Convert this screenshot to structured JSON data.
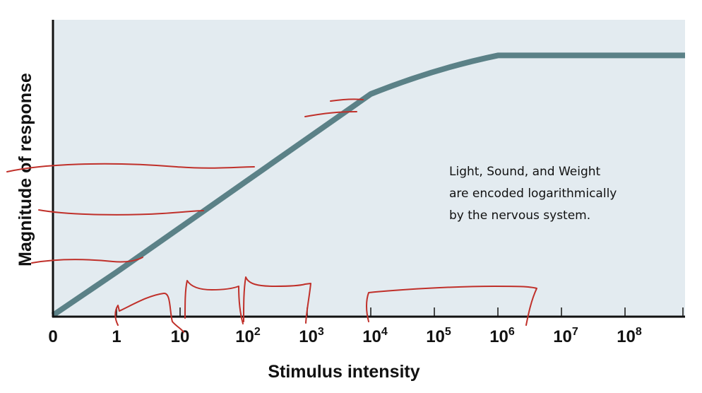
{
  "chart_data": {
    "type": "line",
    "xlabel": "Stimulus intensity",
    "ylabel": "Magnitude of response",
    "x_scale": "logarithmic (0, then decades)",
    "x_ticks": [
      {
        "base": "0",
        "exp": ""
      },
      {
        "base": "1",
        "exp": ""
      },
      {
        "base": "10",
        "exp": ""
      },
      {
        "base": "10",
        "exp": "2"
      },
      {
        "base": "10",
        "exp": "3"
      },
      {
        "base": "10",
        "exp": "4"
      },
      {
        "base": "10",
        "exp": "5"
      },
      {
        "base": "10",
        "exp": "6"
      },
      {
        "base": "10",
        "exp": "7"
      },
      {
        "base": "10",
        "exp": "8"
      }
    ],
    "series": [
      {
        "x": [
          0,
          1,
          10,
          100,
          1000,
          10000,
          100000,
          1000000,
          10000000,
          100000000,
          1000000000
        ],
        "y": [
          0,
          0.15,
          0.3,
          0.45,
          0.6,
          0.75,
          0.85,
          0.88,
          0.88,
          0.88,
          0.88
        ],
        "color": "#5b8187"
      }
    ],
    "ylim": [
      0,
      1
    ],
    "y_ticks": [],
    "grid": false,
    "background": "#e3ebf0",
    "annotation": [
      "Light, Sound, and Weight",
      "are encoded logarithmically",
      "by the nervous system."
    ],
    "handwritten_marks_color": "#c0302a"
  }
}
